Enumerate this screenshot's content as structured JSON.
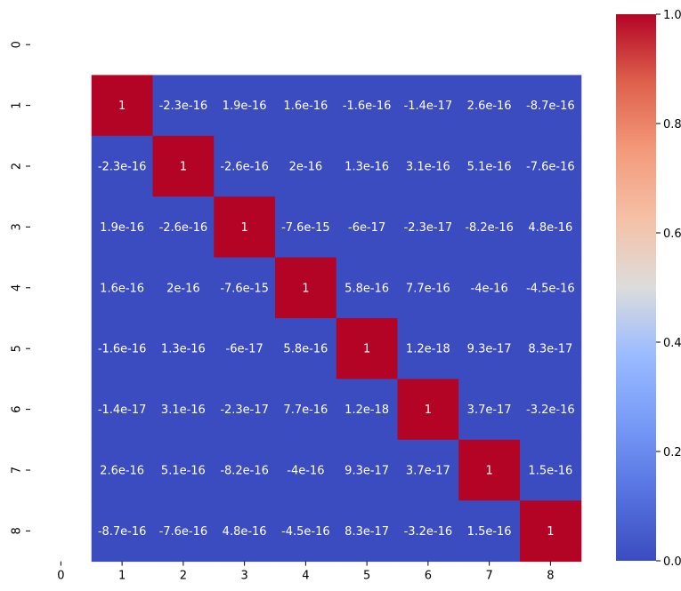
{
  "chart_data": {
    "type": "heatmap",
    "title": "",
    "xlabel": "",
    "ylabel": "",
    "x_tick_labels": [
      "0",
      "1",
      "2",
      "3",
      "4",
      "5",
      "6",
      "7",
      "8"
    ],
    "y_tick_labels": [
      "0",
      "1",
      "2",
      "3",
      "4",
      "5",
      "6",
      "7",
      "8"
    ],
    "colormap": "coolwarm",
    "colors": {
      "low": "#3b4cc0",
      "mid": "#dddddd",
      "high": "#b40426"
    },
    "vmin": 0.0,
    "vmax": 1.0,
    "colorbar": {
      "ticks": [
        "0.0",
        "0.2",
        "0.4",
        "0.6",
        "0.8",
        "1.0"
      ]
    },
    "note_row0_col0": "empty",
    "rows": [
      "1",
      "2",
      "3",
      "4",
      "5",
      "6",
      "7",
      "8"
    ],
    "cols": [
      "1",
      "2",
      "3",
      "4",
      "5",
      "6",
      "7",
      "8"
    ],
    "values": [
      [
        1,
        -2.3e-16,
        1.9e-16,
        1.6e-16,
        -1.6e-16,
        -1.4e-17,
        2.6e-16,
        -8.7e-16
      ],
      [
        -2.3e-16,
        1,
        -2.6e-16,
        2e-16,
        1.3e-16,
        3.1e-16,
        5.1e-16,
        -7.6e-16
      ],
      [
        1.9e-16,
        -2.6e-16,
        1,
        -7.6e-15,
        -6e-17,
        -2.3e-17,
        -8.2e-16,
        4.8e-16
      ],
      [
        1.6e-16,
        2e-16,
        -7.6e-15,
        1,
        5.8e-16,
        7.7e-16,
        -4e-16,
        -4.5e-16
      ],
      [
        -1.6e-16,
        1.3e-16,
        -6e-17,
        5.8e-16,
        1,
        1.2e-18,
        9.3e-17,
        8.3e-17
      ],
      [
        -1.4e-17,
        3.1e-16,
        -2.3e-17,
        7.7e-16,
        1.2e-18,
        1,
        3.7e-17,
        -3.2e-16
      ],
      [
        2.6e-16,
        5.1e-16,
        -8.2e-16,
        -4e-16,
        9.3e-17,
        3.7e-17,
        1,
        1.5e-16
      ],
      [
        -8.7e-16,
        -7.6e-16,
        4.8e-16,
        -4.5e-16,
        8.3e-17,
        -3.2e-16,
        1.5e-16,
        1
      ]
    ],
    "annotations": [
      [
        "1",
        "-2.3e-16",
        "1.9e-16",
        "1.6e-16",
        "-1.6e-16",
        "-1.4e-17",
        "2.6e-16",
        "-8.7e-16"
      ],
      [
        "-2.3e-16",
        "1",
        "-2.6e-16",
        "2e-16",
        "1.3e-16",
        "3.1e-16",
        "5.1e-16",
        "-7.6e-16"
      ],
      [
        "1.9e-16",
        "-2.6e-16",
        "1",
        "-7.6e-15",
        "-6e-17",
        "-2.3e-17",
        "-8.2e-16",
        "4.8e-16"
      ],
      [
        "1.6e-16",
        "2e-16",
        "-7.6e-15",
        "1",
        "5.8e-16",
        "7.7e-16",
        "-4e-16",
        "-4.5e-16"
      ],
      [
        "-1.6e-16",
        "1.3e-16",
        "-6e-17",
        "5.8e-16",
        "1",
        "1.2e-18",
        "9.3e-17",
        "8.3e-17"
      ],
      [
        "-1.4e-17",
        "3.1e-16",
        "-2.3e-17",
        "7.7e-16",
        "1.2e-18",
        "1",
        "3.7e-17",
        "-3.2e-16"
      ],
      [
        "2.6e-16",
        "5.1e-16",
        "-8.2e-16",
        "-4e-16",
        "9.3e-17",
        "3.7e-17",
        "1",
        "1.5e-16"
      ],
      [
        "-8.7e-16",
        "-7.6e-16",
        "4.8e-16",
        "-4.5e-16",
        "8.3e-17",
        "-3.2e-16",
        "1.5e-16",
        "1"
      ]
    ]
  }
}
